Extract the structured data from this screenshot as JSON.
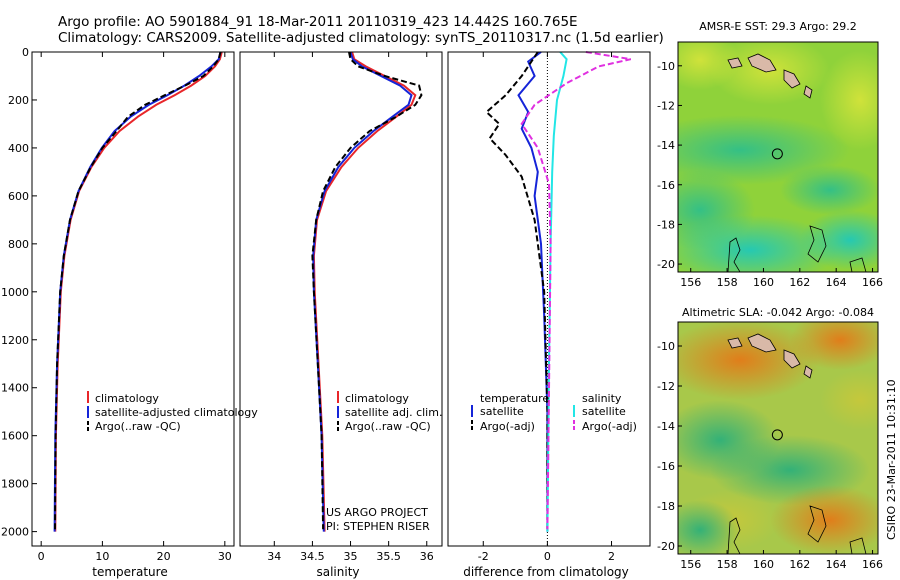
{
  "header": {
    "title_line1": "Argo profile: AO 5901884_91 18-Mar-2011 20110319_423 14.442S 160.765E",
    "title_line2": "Climatology: CARS2009. Satellite-adjusted climatology: synTS_20110317.nc (1.5d earlier)"
  },
  "colors": {
    "climatology": "#e8262a",
    "satellite": "#1524d8",
    "argo": "#000000",
    "cyan": "#22e6e6",
    "magenta": "#e030e0"
  },
  "chart_data": [
    {
      "type": "line",
      "id": "temperature",
      "xlabel": "temperature",
      "xlim": [
        -1.5,
        31.5
      ],
      "ylim": [
        2060,
        0
      ],
      "xticks": [
        0,
        10,
        20,
        30
      ],
      "yticks": [
        0,
        200,
        400,
        600,
        800,
        1000,
        1200,
        1400,
        1600,
        1800,
        2000
      ],
      "legend": {
        "position": "bottom-right",
        "items": [
          {
            "label": "climatology",
            "color": "#e8262a",
            "dash": ""
          },
          {
            "label": "satellite-adjusted climatology",
            "color": "#1524d8",
            "dash": ""
          },
          {
            "label": "Argo(..raw -QC)",
            "color": "#000000",
            "dash": "6,3"
          }
        ]
      },
      "series": [
        {
          "name": "climatology",
          "color": "#e8262a",
          "dash": "",
          "x": [
            29.5,
            29.2,
            28.4,
            26.8,
            24.5,
            21.8,
            18.8,
            15.8,
            12.8,
            10.3,
            8.2,
            6.2,
            4.8,
            3.8,
            3.2,
            2.7,
            2.4,
            2.3
          ],
          "y": [
            0,
            30,
            60,
            100,
            140,
            180,
            220,
            270,
            330,
            400,
            480,
            580,
            700,
            850,
            1000,
            1300,
            1600,
            2000
          ]
        },
        {
          "name": "satellite",
          "color": "#1524d8",
          "dash": "",
          "x": [
            29.3,
            29.0,
            27.8,
            25.8,
            23.4,
            20.6,
            17.6,
            14.6,
            12.0,
            9.9,
            8.0,
            6.1,
            4.7,
            3.7,
            3.1,
            2.6,
            2.3,
            2.2
          ],
          "y": [
            0,
            30,
            60,
            100,
            140,
            180,
            220,
            270,
            330,
            400,
            480,
            580,
            700,
            850,
            1000,
            1300,
            1600,
            2000
          ]
        },
        {
          "name": "Argo",
          "color": "#000000",
          "dash": "6,3",
          "x": [
            29.3,
            29.0,
            28.1,
            26.5,
            23.5,
            20.2,
            17.0,
            14.2,
            12.3,
            10.0,
            8.1,
            6.1,
            4.7,
            3.7,
            3.1,
            2.6,
            2.35,
            2.25
          ],
          "y": [
            0,
            30,
            60,
            100,
            140,
            180,
            220,
            270,
            330,
            400,
            480,
            580,
            700,
            850,
            1000,
            1300,
            1600,
            1990
          ]
        }
      ]
    },
    {
      "type": "line",
      "id": "salinity",
      "xlabel": "salinity",
      "xlim": [
        33.55,
        36.2
      ],
      "ylim": [
        2060,
        0
      ],
      "xticks": [
        34,
        34.5,
        35,
        35.5,
        36
      ],
      "xticklabels": [
        "34",
        "34.5",
        "35",
        "35.5",
        "36"
      ],
      "legend": {
        "position": "bottom-right",
        "items": [
          {
            "label": "climatology",
            "color": "#e8262a",
            "dash": ""
          },
          {
            "label": "satellite adj. clim.",
            "color": "#1524d8",
            "dash": ""
          },
          {
            "label": "Argo(..raw -QC)",
            "color": "#000000",
            "dash": "6,3"
          }
        ]
      },
      "annotation": [
        "US ARGO PROJECT",
        "PI: STEPHEN RISER"
      ],
      "series": [
        {
          "name": "climatology",
          "color": "#e8262a",
          "dash": "",
          "x": [
            35.02,
            35.05,
            35.2,
            35.45,
            35.7,
            35.85,
            35.8,
            35.6,
            35.35,
            35.1,
            34.88,
            34.68,
            34.56,
            34.52,
            34.53,
            34.58,
            34.63,
            34.66
          ],
          "y": [
            0,
            30,
            60,
            100,
            140,
            180,
            220,
            270,
            330,
            400,
            480,
            580,
            700,
            850,
            1000,
            1300,
            1600,
            2000
          ]
        },
        {
          "name": "satellite",
          "color": "#1524d8",
          "dash": "",
          "x": [
            35.0,
            35.03,
            35.15,
            35.4,
            35.65,
            35.8,
            35.76,
            35.55,
            35.3,
            35.05,
            34.84,
            34.66,
            34.55,
            34.51,
            34.52,
            34.57,
            34.62,
            34.65
          ],
          "y": [
            0,
            30,
            60,
            100,
            140,
            180,
            220,
            270,
            330,
            400,
            480,
            580,
            700,
            850,
            1000,
            1300,
            1600,
            2000
          ]
        },
        {
          "name": "Argo",
          "color": "#000000",
          "dash": "6,3",
          "x": [
            34.98,
            35.0,
            35.1,
            35.45,
            35.9,
            35.93,
            35.85,
            35.6,
            35.25,
            35.0,
            34.8,
            34.64,
            34.55,
            34.5,
            34.52,
            34.57,
            34.62,
            34.64
          ],
          "y": [
            0,
            30,
            60,
            100,
            140,
            180,
            220,
            270,
            330,
            400,
            480,
            580,
            700,
            850,
            1000,
            1300,
            1600,
            1990
          ]
        }
      ]
    },
    {
      "type": "line",
      "id": "difference",
      "xlabel": "difference from climatology",
      "xlim": [
        -3.1,
        3.2
      ],
      "ylim": [
        2060,
        0
      ],
      "xticks": [
        -2,
        0,
        2
      ],
      "zero_line": true,
      "legend": {
        "position": "bottom",
        "columns": [
          {
            "heading": "temperature",
            "items": [
              {
                "label": "satellite",
                "color": "#1524d8",
                "dash": ""
              },
              {
                "label": "Argo(-adj)",
                "color": "#000000",
                "dash": "6,3"
              }
            ]
          },
          {
            "heading": "salinity",
            "items": [
              {
                "label": "satellite",
                "color": "#22e6e6",
                "dash": ""
              },
              {
                "label": "Argo(-adj)",
                "color": "#e030e0",
                "dash": "6,3"
              }
            ]
          }
        ]
      },
      "series": [
        {
          "name": "temperature satellite",
          "color": "#1524d8",
          "dash": "",
          "x": [
            -0.2,
            -0.6,
            -0.4,
            -0.9,
            -0.6,
            -0.8,
            -0.5,
            -0.3,
            -0.4,
            -0.2,
            -0.1,
            0.0,
            0.0
          ],
          "y": [
            0,
            40,
            100,
            180,
            250,
            320,
            400,
            500,
            600,
            800,
            1100,
            1500,
            2000
          ]
        },
        {
          "name": "temperature Argo",
          "color": "#000000",
          "dash": "6,3",
          "x": [
            -0.3,
            -0.5,
            -0.8,
            -1.3,
            -1.9,
            -1.5,
            -1.8,
            -1.3,
            -0.8,
            -0.4,
            -0.1,
            0.0,
            0.0
          ],
          "y": [
            0,
            40,
            100,
            180,
            250,
            300,
            360,
            430,
            520,
            700,
            1000,
            1500,
            1990
          ]
        },
        {
          "name": "salinity satellite",
          "color": "#22e6e6",
          "dash": "",
          "x": [
            0.4,
            0.6,
            0.5,
            0.3,
            0.2,
            0.15,
            0.1,
            0.05,
            0.0
          ],
          "y": [
            0,
            30,
            100,
            200,
            350,
            500,
            800,
            1300,
            2000
          ]
        },
        {
          "name": "salinity Argo",
          "color": "#e030e0",
          "dash": "6,3",
          "x": [
            1.2,
            2.6,
            1.6,
            0.6,
            -0.4,
            -0.8,
            -0.3,
            0.05,
            0.1,
            0.06,
            0.0
          ],
          "y": [
            0,
            30,
            60,
            130,
            220,
            300,
            400,
            550,
            800,
            1300,
            1990
          ]
        }
      ]
    },
    {
      "type": "heatmap",
      "id": "sst_map",
      "title": "AMSR-E SST: 29.3 Argo: 29.2",
      "xlim": [
        155.3,
        166.3
      ],
      "ylim": [
        -20.4,
        -8.8
      ],
      "xticks": [
        156,
        158,
        160,
        162,
        164,
        166
      ],
      "yticks": [
        -10,
        -12,
        -14,
        -16,
        -18,
        -20
      ],
      "marker": {
        "lon": 160.765,
        "lat": -14.442
      }
    },
    {
      "type": "heatmap",
      "id": "sla_map",
      "title": "Altimetric SLA: -0.042 Argo: -0.084",
      "xlim": [
        155.3,
        166.3
      ],
      "ylim": [
        -20.4,
        -8.8
      ],
      "xticks": [
        156,
        158,
        160,
        162,
        164,
        166
      ],
      "yticks": [
        -10,
        -12,
        -14,
        -16,
        -18,
        -20
      ],
      "marker": {
        "lon": 160.765,
        "lat": -14.442
      }
    }
  ],
  "footer": {
    "side_text": "CSIRO 23-Mar-2011 10:31:10"
  }
}
